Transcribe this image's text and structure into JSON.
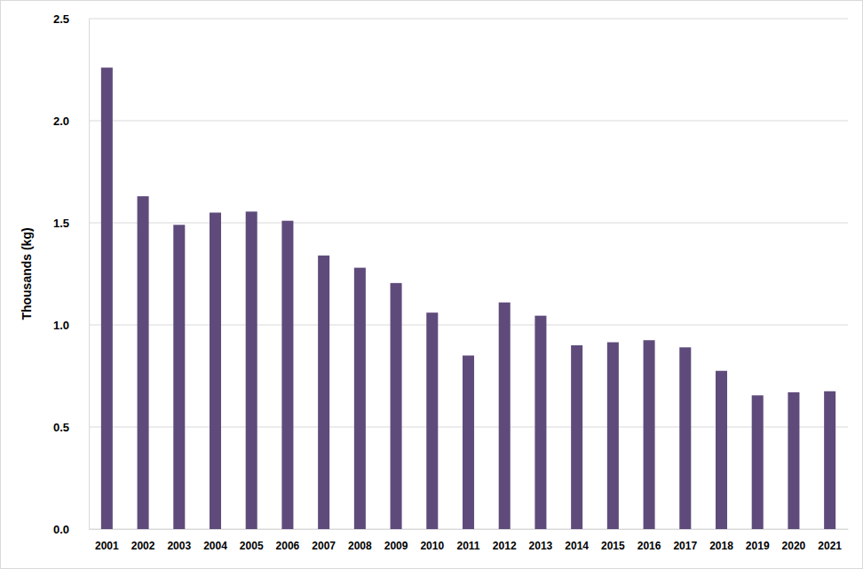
{
  "chart_data": {
    "type": "bar",
    "y_label": "Thousands (kg)",
    "categories": [
      "2001",
      "2002",
      "2003",
      "2004",
      "2005",
      "2006",
      "2007",
      "2008",
      "2009",
      "2010",
      "2011",
      "2012",
      "2013",
      "2014",
      "2015",
      "2016",
      "2017",
      "2018",
      "2019",
      "2020",
      "2021"
    ],
    "values": [
      2.26,
      1.63,
      1.49,
      1.55,
      1.555,
      1.51,
      1.34,
      1.28,
      1.205,
      1.06,
      0.85,
      1.11,
      1.045,
      0.9,
      0.915,
      0.925,
      0.89,
      0.775,
      0.655,
      0.67,
      0.675
    ],
    "color": "#5f4b7b",
    "ylim": [
      0,
      2.5
    ],
    "yticks": [
      {
        "value": 0,
        "label": "0.0"
      },
      0.5,
      {
        "value": 1,
        "label": "1.0"
      },
      1.5,
      {
        "value": 2,
        "label": "2.0"
      },
      2.5
    ],
    "grid": true
  }
}
